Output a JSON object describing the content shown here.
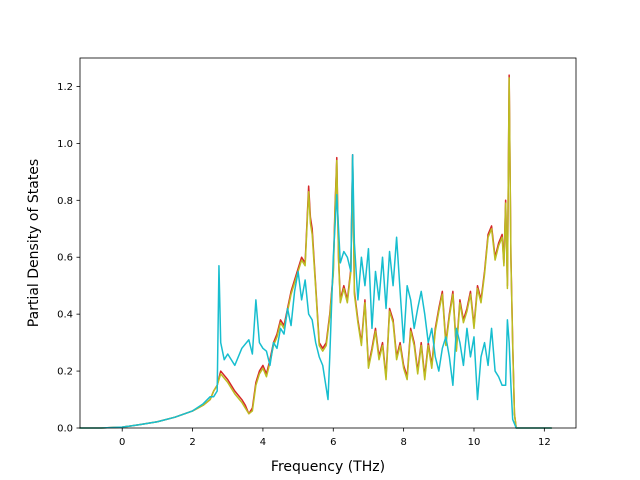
{
  "chart_data": {
    "type": "line",
    "title": "",
    "xlabel": "Frequency (THz)",
    "ylabel": "Partial Density of States",
    "xlim": [
      -1.2,
      12.9
    ],
    "ylim": [
      0.0,
      1.3
    ],
    "xticks": [
      0,
      2,
      4,
      6,
      8,
      10,
      12
    ],
    "yticks": [
      0.0,
      0.2,
      0.4,
      0.6,
      0.8,
      1.0,
      1.2
    ],
    "xtick_labels": [
      "0",
      "2",
      "4",
      "6",
      "8",
      "10",
      "12"
    ],
    "ytick_labels": [
      "0.0",
      "0.2",
      "0.4",
      "0.6",
      "0.8",
      "1.0",
      "1.2"
    ],
    "grid": false,
    "legend": "none",
    "series": [
      {
        "color": "#d62728",
        "x": [
          -1.2,
          -0.6,
          0,
          0.5,
          1,
          1.5,
          2,
          2.3,
          2.5,
          2.6,
          2.7,
          2.8,
          3.0,
          3.2,
          3.4,
          3.5,
          3.6,
          3.7,
          3.8,
          3.9,
          4.0,
          4.1,
          4.2,
          4.3,
          4.4,
          4.5,
          4.6,
          4.7,
          4.8,
          4.9,
          5.0,
          5.1,
          5.2,
          5.3,
          5.35,
          5.4,
          5.5,
          5.6,
          5.7,
          5.8,
          5.9,
          6.0,
          6.05,
          6.1,
          6.15,
          6.2,
          6.3,
          6.4,
          6.5,
          6.55,
          6.6,
          6.7,
          6.8,
          6.9,
          7.0,
          7.1,
          7.2,
          7.3,
          7.4,
          7.5,
          7.6,
          7.7,
          7.8,
          7.9,
          8.0,
          8.1,
          8.2,
          8.3,
          8.4,
          8.5,
          8.6,
          8.7,
          8.8,
          8.9,
          9.0,
          9.1,
          9.2,
          9.3,
          9.4,
          9.5,
          9.6,
          9.7,
          9.8,
          9.9,
          10.0,
          10.1,
          10.2,
          10.3,
          10.4,
          10.5,
          10.6,
          10.7,
          10.8,
          10.85,
          10.9,
          10.95,
          11.0,
          11.05,
          11.1,
          11.15,
          11.2,
          11.4,
          12.2
        ],
        "y": [
          0,
          0,
          0.003,
          0.012,
          0.022,
          0.038,
          0.06,
          0.08,
          0.1,
          0.13,
          0.15,
          0.2,
          0.17,
          0.13,
          0.1,
          0.08,
          0.05,
          0.07,
          0.16,
          0.2,
          0.22,
          0.19,
          0.24,
          0.3,
          0.33,
          0.38,
          0.36,
          0.42,
          0.48,
          0.52,
          0.56,
          0.6,
          0.58,
          0.85,
          0.74,
          0.7,
          0.5,
          0.3,
          0.28,
          0.3,
          0.4,
          0.55,
          0.78,
          0.95,
          0.6,
          0.45,
          0.5,
          0.45,
          0.56,
          0.96,
          0.48,
          0.38,
          0.3,
          0.45,
          0.22,
          0.28,
          0.35,
          0.25,
          0.3,
          0.18,
          0.42,
          0.38,
          0.25,
          0.3,
          0.22,
          0.18,
          0.35,
          0.3,
          0.2,
          0.3,
          0.18,
          0.3,
          0.22,
          0.35,
          0.42,
          0.48,
          0.3,
          0.4,
          0.48,
          0.28,
          0.45,
          0.38,
          0.42,
          0.48,
          0.36,
          0.5,
          0.45,
          0.55,
          0.68,
          0.71,
          0.6,
          0.65,
          0.68,
          0.58,
          0.8,
          0.5,
          1.24,
          0.6,
          0.3,
          0.05,
          0,
          0,
          0
        ]
      },
      {
        "color": "#bcbd22",
        "x": [
          -1.2,
          -0.6,
          0,
          0.5,
          1,
          1.5,
          2,
          2.3,
          2.5,
          2.6,
          2.7,
          2.8,
          3.0,
          3.2,
          3.4,
          3.5,
          3.6,
          3.7,
          3.8,
          3.9,
          4.0,
          4.1,
          4.2,
          4.3,
          4.4,
          4.5,
          4.6,
          4.7,
          4.8,
          4.9,
          5.0,
          5.1,
          5.2,
          5.3,
          5.35,
          5.4,
          5.5,
          5.6,
          5.7,
          5.8,
          5.9,
          6.0,
          6.05,
          6.1,
          6.15,
          6.2,
          6.3,
          6.4,
          6.5,
          6.55,
          6.6,
          6.7,
          6.8,
          6.9,
          7.0,
          7.1,
          7.2,
          7.3,
          7.4,
          7.5,
          7.6,
          7.7,
          7.8,
          7.9,
          8.0,
          8.1,
          8.2,
          8.3,
          8.4,
          8.5,
          8.6,
          8.7,
          8.8,
          8.9,
          9.0,
          9.1,
          9.2,
          9.3,
          9.4,
          9.5,
          9.6,
          9.7,
          9.8,
          9.9,
          10.0,
          10.1,
          10.2,
          10.3,
          10.4,
          10.5,
          10.6,
          10.7,
          10.8,
          10.85,
          10.9,
          10.95,
          11.0,
          11.05,
          11.1,
          11.15,
          11.2,
          11.4,
          12.2
        ],
        "y": [
          0,
          0,
          0.003,
          0.012,
          0.022,
          0.038,
          0.06,
          0.08,
          0.1,
          0.13,
          0.15,
          0.19,
          0.16,
          0.12,
          0.09,
          0.07,
          0.05,
          0.06,
          0.15,
          0.19,
          0.21,
          0.18,
          0.23,
          0.29,
          0.32,
          0.37,
          0.35,
          0.41,
          0.47,
          0.51,
          0.55,
          0.59,
          0.57,
          0.83,
          0.72,
          0.68,
          0.49,
          0.29,
          0.27,
          0.29,
          0.39,
          0.54,
          0.76,
          0.94,
          0.59,
          0.44,
          0.49,
          0.44,
          0.55,
          0.95,
          0.47,
          0.37,
          0.29,
          0.44,
          0.21,
          0.27,
          0.34,
          0.24,
          0.29,
          0.17,
          0.41,
          0.37,
          0.24,
          0.29,
          0.21,
          0.17,
          0.34,
          0.29,
          0.19,
          0.29,
          0.17,
          0.29,
          0.21,
          0.34,
          0.41,
          0.47,
          0.29,
          0.39,
          0.47,
          0.27,
          0.44,
          0.37,
          0.41,
          0.47,
          0.35,
          0.49,
          0.44,
          0.54,
          0.67,
          0.7,
          0.59,
          0.64,
          0.67,
          0.57,
          0.79,
          0.49,
          1.23,
          0.59,
          0.29,
          0.05,
          0,
          0,
          0
        ]
      },
      {
        "color": "#17becf",
        "x": [
          -1.2,
          -0.6,
          0,
          0.5,
          1,
          1.5,
          2,
          2.3,
          2.5,
          2.6,
          2.7,
          2.75,
          2.8,
          2.9,
          3.0,
          3.2,
          3.4,
          3.6,
          3.7,
          3.8,
          3.9,
          4.0,
          4.1,
          4.2,
          4.3,
          4.4,
          4.5,
          4.6,
          4.7,
          4.8,
          4.9,
          5.0,
          5.1,
          5.2,
          5.3,
          5.4,
          5.5,
          5.6,
          5.7,
          5.8,
          5.85,
          5.9,
          6.0,
          6.1,
          6.2,
          6.3,
          6.4,
          6.5,
          6.55,
          6.6,
          6.7,
          6.8,
          6.9,
          7.0,
          7.1,
          7.2,
          7.3,
          7.4,
          7.5,
          7.6,
          7.7,
          7.8,
          7.9,
          8.0,
          8.1,
          8.2,
          8.3,
          8.4,
          8.5,
          8.6,
          8.7,
          8.8,
          8.9,
          9.0,
          9.1,
          9.2,
          9.3,
          9.4,
          9.5,
          9.6,
          9.7,
          9.8,
          9.9,
          10.0,
          10.1,
          10.2,
          10.3,
          10.4,
          10.5,
          10.6,
          10.7,
          10.8,
          10.9,
          10.95,
          11.0,
          11.05,
          11.1,
          11.2,
          11.4,
          12.2
        ],
        "y": [
          0,
          0,
          0.003,
          0.012,
          0.022,
          0.038,
          0.06,
          0.085,
          0.11,
          0.11,
          0.13,
          0.57,
          0.3,
          0.24,
          0.26,
          0.22,
          0.28,
          0.31,
          0.26,
          0.45,
          0.3,
          0.28,
          0.27,
          0.22,
          0.3,
          0.28,
          0.35,
          0.33,
          0.42,
          0.36,
          0.48,
          0.55,
          0.45,
          0.52,
          0.4,
          0.38,
          0.3,
          0.25,
          0.22,
          0.14,
          0.1,
          0.25,
          0.6,
          0.82,
          0.58,
          0.62,
          0.6,
          0.55,
          0.96,
          0.65,
          0.45,
          0.6,
          0.5,
          0.63,
          0.35,
          0.55,
          0.45,
          0.6,
          0.42,
          0.62,
          0.5,
          0.67,
          0.48,
          0.3,
          0.5,
          0.45,
          0.35,
          0.42,
          0.48,
          0.4,
          0.3,
          0.35,
          0.25,
          0.2,
          0.28,
          0.32,
          0.25,
          0.15,
          0.35,
          0.3,
          0.22,
          0.35,
          0.25,
          0.32,
          0.1,
          0.25,
          0.3,
          0.22,
          0.35,
          0.2,
          0.18,
          0.15,
          0.15,
          0.38,
          0.3,
          0.15,
          0.03,
          0,
          0,
          0
        ]
      }
    ]
  }
}
